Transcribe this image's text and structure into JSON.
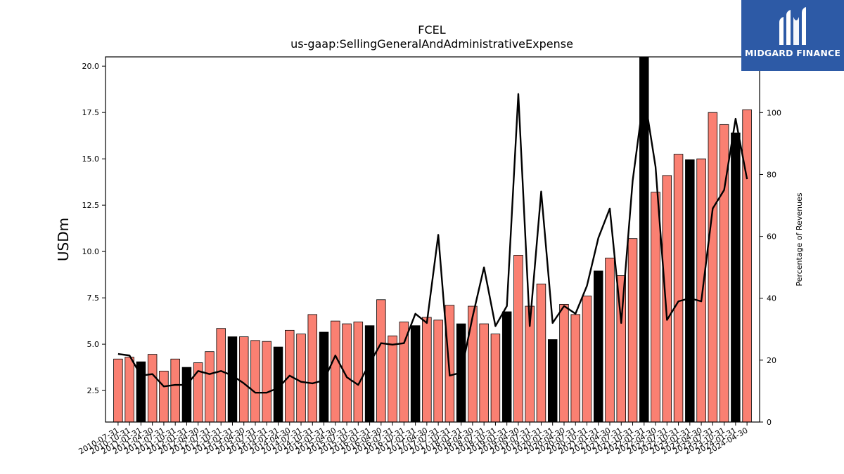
{
  "brand": {
    "name": "MIDGARD FINANCE",
    "bg": "#2d5aa6"
  },
  "chart_data": {
    "type": "bar",
    "title": "FCEL",
    "subtitle": "us-gaap:SellingGeneralAndAdministrativeExpense",
    "ylabel": "USDm",
    "ylabel_right": "Percentage of Revenues",
    "ylim": [
      0.8,
      20.5
    ],
    "ylim_right": [
      0,
      118
    ],
    "yticks": [
      "2.5",
      "5.0",
      "7.5",
      "10.0",
      "12.5",
      "15.0",
      "17.5",
      "20.0"
    ],
    "yticks_right": [
      "0",
      "20",
      "40",
      "60",
      "80",
      "100"
    ],
    "colors": {
      "quarter": "#fa8072",
      "annual": "#000000",
      "line": "#000000"
    },
    "categories": [
      "2010-07-31",
      "2010-10-31",
      "2011-01-31",
      "2011-04-30",
      "2011-07-31",
      "2011-10-31",
      "2012-01-31",
      "2012-04-30",
      "2012-07-31",
      "2012-10-31",
      "2013-01-31",
      "2013-04-30",
      "2013-07-31",
      "2013-10-31",
      "2014-01-31",
      "2014-04-30",
      "2014-07-31",
      "2014-10-31",
      "2015-01-31",
      "2015-04-30",
      "2015-07-31",
      "2015-10-31",
      "2016-01-31",
      "2016-04-30",
      "2016-07-31",
      "2016-10-31",
      "2017-01-31",
      "2017-04-30",
      "2017-07-31",
      "2017-10-31",
      "2018-01-31",
      "2018-04-30",
      "2018-07-31",
      "2018-10-31",
      "2019-01-31",
      "2019-04-30",
      "2019-07-31",
      "2019-10-31",
      "2020-01-31",
      "2020-04-30",
      "2020-07-31",
      "2020-10-31",
      "2021-01-31",
      "2021-04-30",
      "2021-07-31",
      "2021-10-31",
      "2022-01-31",
      "2022-04-30",
      "2022-07-31",
      "2022-10-31",
      "2023-01-31",
      "2023-04-30",
      "2023-07-31",
      "2023-10-31",
      "2024-01-31",
      "2024-04-30"
    ],
    "xtick_labels": [
      "2010-07-31",
      "2010-10-31",
      "2011-01-31",
      "2011-04-30",
      "2011-07-31",
      "2011-10-31",
      "2012-01-31",
      "2012-04-30",
      "2012-07-31",
      "2012-10-31",
      "2013-01-31",
      "2013-04-30",
      "2013-07-31",
      "2013-10-31",
      "2014-01-31",
      "2014-04-30",
      "2014-07-31",
      "2014-10-31",
      "2015-01-31",
      "2015-04-30",
      "2015-07-31",
      "2015-10-31",
      "2016-01-31",
      "2016-04-30",
      "2016-07-31",
      "2016-10-31",
      "2017-01-31",
      "2017-04-30",
      "2017-07-31",
      "2017-10-31",
      "2018-01-31",
      "2018-04-30",
      "2018-07-31",
      "2018-10-31",
      "2019-01-31",
      "2019-04-30",
      "2019-07-31",
      "2019-10-31",
      "2020-01-31",
      "2020-04-30",
      "2020-07-31",
      "2020-10-31",
      "2021-01-31",
      "2021-04-30",
      "2021-07-31",
      "2021-10-31",
      "2022-01-31",
      "2022-04-30",
      "2022-07-31",
      "2022-10-31",
      "2023-01-31",
      "2023-04-30",
      "2023-07-31",
      "2023-10-31",
      "2024-01-31",
      "2024-04-30"
    ],
    "series": [
      {
        "values": [
          4.2,
          4.3,
          4.05,
          4.45,
          3.55,
          4.2,
          3.75,
          4.0,
          4.6,
          5.85,
          5.4,
          5.4,
          5.2,
          5.15,
          4.85,
          5.75,
          5.55,
          6.6,
          5.65,
          6.25,
          6.1,
          6.2,
          6.0,
          7.4,
          5.45,
          6.2,
          6.0,
          6.45,
          6.3,
          7.1,
          6.1,
          7.05,
          6.1,
          5.55,
          6.75,
          9.8,
          7.05,
          8.25,
          5.25,
          7.15,
          6.6,
          7.6,
          8.95,
          9.65,
          8.7,
          10.7,
          20.5,
          13.2,
          14.1,
          15.25,
          14.95,
          15.0,
          17.5,
          16.85,
          16.4,
          17.65
        ],
        "annual": [
          false,
          false,
          true,
          false,
          false,
          false,
          true,
          false,
          false,
          false,
          true,
          false,
          false,
          false,
          true,
          false,
          false,
          false,
          true,
          false,
          false,
          false,
          true,
          false,
          false,
          false,
          true,
          false,
          false,
          false,
          true,
          false,
          false,
          false,
          true,
          false,
          false,
          false,
          true,
          false,
          false,
          false,
          true,
          false,
          false,
          false,
          true,
          false,
          false,
          false,
          true,
          false,
          false,
          false,
          true,
          false
        ]
      },
      {
        "axis": "right",
        "values": [
          22,
          21.5,
          15,
          15.5,
          11.5,
          12,
          12,
          16.5,
          15.5,
          16.5,
          15,
          12.5,
          9.5,
          9.5,
          11,
          15,
          13,
          12.5,
          13.5,
          21.5,
          14.5,
          12,
          19,
          25.5,
          25,
          25.5,
          35,
          32,
          60.5,
          15,
          16,
          34,
          50,
          31,
          37.5,
          106,
          31,
          74.5,
          32,
          37.5,
          35,
          44,
          59.5,
          69,
          32,
          78,
          106,
          82.5,
          33,
          39,
          40,
          39,
          69,
          75,
          98,
          78.5
        ]
      }
    ]
  }
}
